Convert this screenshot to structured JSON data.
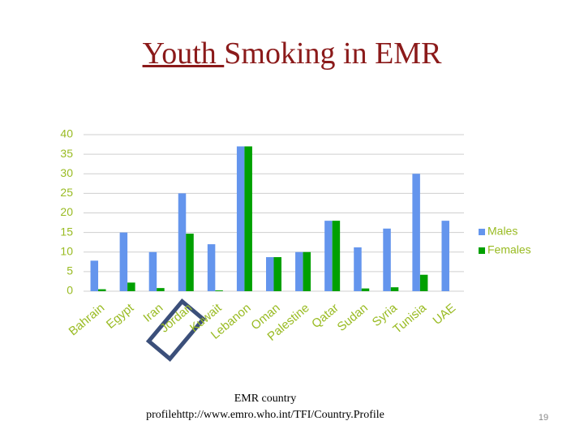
{
  "slide": {
    "title_parts": [
      "Youth ",
      "Smoking in EMR"
    ],
    "footer_lines": [
      "EMR country",
      "profilehttp://www.emro.who.int/TFI/Country.Profile"
    ],
    "page_number": "19"
  },
  "chart_data": {
    "type": "bar",
    "categories": [
      "Bahrain",
      "Egypt",
      "Iran",
      "Jordan",
      "Kuwait",
      "Lebanon",
      "Oman",
      "Palestine",
      "Qatar",
      "Sudan",
      "Syria",
      "Tunisia",
      "UAE"
    ],
    "series": [
      {
        "name": "Males",
        "color": "#6495ed",
        "values": [
          7.8,
          15,
          10,
          25,
          12,
          37,
          8.7,
          10,
          18,
          11.2,
          16,
          30,
          18
        ]
      },
      {
        "name": "Females",
        "color": "#00a000",
        "values": [
          0.5,
          2.2,
          0.8,
          14.7,
          0.2,
          37,
          8.7,
          10,
          18,
          0.7,
          1,
          4.2,
          null
        ]
      }
    ],
    "ylim": [
      0,
      40
    ],
    "yticks": [
      0,
      5,
      10,
      15,
      20,
      25,
      30,
      35,
      40
    ],
    "grid": true,
    "legend": "right"
  }
}
